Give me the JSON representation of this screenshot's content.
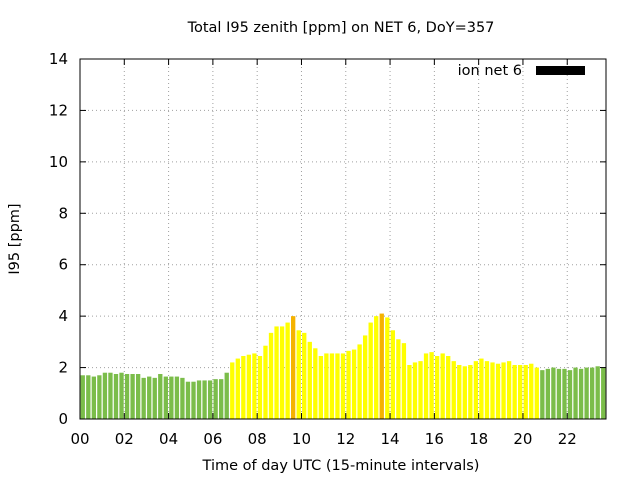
{
  "chart_data": {
    "type": "bar",
    "title": "Total I95 zenith [ppm] on NET 6, DoY=357",
    "xlabel": "Time of day UTC (15-minute intervals)",
    "ylabel": "I95 [ppm]",
    "ylim": [
      0,
      14
    ],
    "xlim": [
      0,
      23.75
    ],
    "yticks": [
      0,
      2,
      4,
      6,
      8,
      10,
      12,
      14
    ],
    "xtick_values": [
      0,
      2,
      4,
      6,
      8,
      10,
      12,
      14,
      16,
      18,
      20,
      22
    ],
    "xtick_labels": [
      "00",
      "02",
      "04",
      "06",
      "08",
      "10",
      "12",
      "14",
      "16",
      "18",
      "20",
      "22"
    ],
    "grid": true,
    "legend": {
      "position": "top-right",
      "label": "ion net 6",
      "color": "#000000"
    },
    "interval_hours": 0.25,
    "colors": {
      "green": "#7bbd4a",
      "yellow": "#ffff00",
      "orange": "#f5b200"
    },
    "values": [
      1.7,
      1.7,
      1.65,
      1.7,
      1.8,
      1.8,
      1.75,
      1.8,
      1.75,
      1.75,
      1.75,
      1.6,
      1.65,
      1.6,
      1.75,
      1.65,
      1.65,
      1.65,
      1.6,
      1.45,
      1.45,
      1.5,
      1.5,
      1.5,
      1.55,
      1.55,
      1.8,
      2.2,
      2.35,
      2.45,
      2.5,
      2.55,
      2.45,
      2.85,
      3.35,
      3.6,
      3.6,
      3.75,
      4.0,
      3.45,
      3.35,
      3.0,
      2.75,
      2.45,
      2.55,
      2.55,
      2.55,
      2.55,
      2.65,
      2.7,
      2.9,
      3.25,
      3.75,
      4.0,
      4.1,
      3.95,
      3.45,
      3.1,
      2.95,
      2.1,
      2.2,
      2.25,
      2.55,
      2.6,
      2.45,
      2.55,
      2.45,
      2.25,
      2.1,
      2.05,
      2.1,
      2.25,
      2.35,
      2.25,
      2.2,
      2.15,
      2.2,
      2.25,
      2.1,
      2.1,
      2.1,
      2.15,
      2.0,
      1.9,
      1.95,
      2.0,
      1.95,
      1.95,
      1.9,
      2.0,
      1.95,
      2.0,
      2.0,
      2.05,
      2.0
    ],
    "bar_colors": [
      "green",
      "green",
      "green",
      "green",
      "green",
      "green",
      "green",
      "green",
      "green",
      "green",
      "green",
      "green",
      "green",
      "green",
      "green",
      "green",
      "green",
      "green",
      "green",
      "green",
      "green",
      "green",
      "green",
      "green",
      "green",
      "green",
      "green",
      "yellow",
      "yellow",
      "yellow",
      "yellow",
      "yellow",
      "yellow",
      "yellow",
      "yellow",
      "yellow",
      "yellow",
      "yellow",
      "orange",
      "yellow",
      "yellow",
      "yellow",
      "yellow",
      "yellow",
      "yellow",
      "yellow",
      "yellow",
      "yellow",
      "yellow",
      "yellow",
      "yellow",
      "yellow",
      "yellow",
      "yellow",
      "orange",
      "yellow",
      "yellow",
      "yellow",
      "yellow",
      "yellow",
      "yellow",
      "yellow",
      "yellow",
      "yellow",
      "yellow",
      "yellow",
      "yellow",
      "yellow",
      "yellow",
      "yellow",
      "yellow",
      "yellow",
      "yellow",
      "yellow",
      "yellow",
      "yellow",
      "yellow",
      "yellow",
      "yellow",
      "yellow",
      "yellow",
      "yellow",
      "yellow",
      "green",
      "green",
      "green",
      "green",
      "green",
      "green",
      "green",
      "green",
      "green",
      "green",
      "green",
      "green"
    ]
  }
}
